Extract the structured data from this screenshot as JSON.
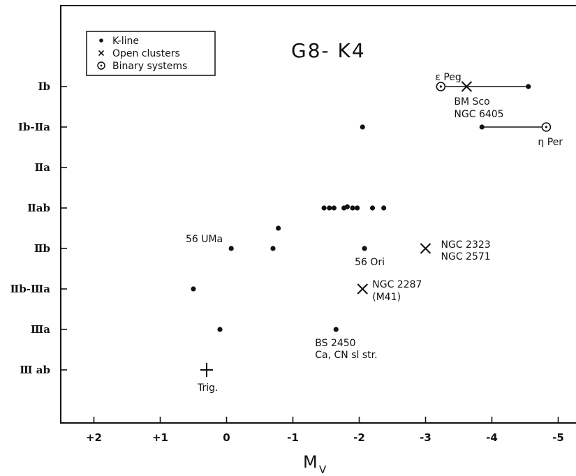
{
  "chart_data": {
    "type": "scatter",
    "title": "G8- K4",
    "xlabel": "M",
    "xlabel_sub": "V",
    "ylabel": "",
    "xlim": [
      2.5,
      -5.5
    ],
    "x_reversed": true,
    "x_ticks": [
      2,
      1,
      0,
      -1,
      -2,
      -3,
      -4,
      -5
    ],
    "x_tick_labels": [
      "+2",
      "+1",
      "0",
      "-1",
      "-2",
      "-3",
      "-4",
      "-5"
    ],
    "y_categories": [
      "Ib",
      "Ib-IIa",
      "IIa",
      "IIab",
      "IIb",
      "IIb-IIIa",
      "IIIa",
      "IIIab"
    ],
    "y_category_labels": [
      "Ib",
      "Ib-Ⅱa",
      "Ⅱa",
      "Ⅱab",
      "Ⅱb",
      "Ⅱb-Ⅲa",
      "Ⅲa",
      "Ⅲ ab"
    ],
    "grid": false,
    "legend": {
      "position": "top-left",
      "entries": [
        {
          "marker": "dot",
          "label": "K-line"
        },
        {
          "marker": "cross",
          "label": "Open clusters"
        },
        {
          "marker": "circle-dot",
          "label": "Binary systems"
        }
      ]
    },
    "series": [
      {
        "name": "K-line",
        "marker": "dot",
        "points": [
          {
            "x": -2.05,
            "y": 1
          },
          {
            "x": -4.55,
            "y": 0
          },
          {
            "x": -3.85,
            "y": 1
          },
          {
            "x": -1.47,
            "y": 3
          },
          {
            "x": -1.55,
            "y": 3
          },
          {
            "x": -1.62,
            "y": 3
          },
          {
            "x": -1.77,
            "y": 3
          },
          {
            "x": -1.82,
            "y": 2.97
          },
          {
            "x": -1.9,
            "y": 3
          },
          {
            "x": -1.97,
            "y": 3
          },
          {
            "x": -2.2,
            "y": 3
          },
          {
            "x": -2.37,
            "y": 3
          },
          {
            "x": -0.78,
            "y": 3.5
          },
          {
            "x": -0.07,
            "y": 4
          },
          {
            "x": -0.7,
            "y": 4
          },
          {
            "x": -2.08,
            "y": 4
          },
          {
            "x": 0.5,
            "y": 5
          },
          {
            "x": 0.1,
            "y": 6
          },
          {
            "x": -1.65,
            "y": 6
          }
        ]
      },
      {
        "name": "Open clusters",
        "marker": "cross",
        "points": [
          {
            "x": -3.62,
            "y": 0
          },
          {
            "x": -3.0,
            "y": 4
          },
          {
            "x": -2.05,
            "y": 5
          }
        ]
      },
      {
        "name": "Binary systems",
        "marker": "circle-dot",
        "points": [
          {
            "x": -3.23,
            "y": 0
          },
          {
            "x": -4.82,
            "y": 1
          }
        ]
      },
      {
        "name": "Trig.",
        "marker": "plus",
        "points": [
          {
            "x": 0.3,
            "y": 7
          }
        ]
      }
    ],
    "segments": [
      {
        "x1": -3.23,
        "x2": -4.55,
        "y": 0
      },
      {
        "x1": -3.85,
        "x2": -4.82,
        "y": 1
      }
    ],
    "annotations": [
      {
        "id": "eps-peg",
        "text": "ε Peg",
        "x": -3.23,
        "y": 0
      },
      {
        "id": "bm-sco-1",
        "text": "BM Sco",
        "x": -3.62,
        "y": 0
      },
      {
        "id": "bm-sco-2",
        "text": "NGC 6405",
        "x": -3.62,
        "y": 0
      },
      {
        "id": "eta-per",
        "text": "η Per",
        "x": -4.82,
        "y": 1
      },
      {
        "id": "56-uma",
        "text": "56 UMa",
        "x": -0.07,
        "y": 4
      },
      {
        "id": "56-ori",
        "text": "56 Ori",
        "x": -2.08,
        "y": 4
      },
      {
        "id": "ngc2323-1",
        "text": "NGC 2323",
        "x": -3.0,
        "y": 4
      },
      {
        "id": "ngc2323-2",
        "text": "NGC 2571",
        "x": -3.0,
        "y": 4
      },
      {
        "id": "ngc2287-1",
        "text": "NGC 2287",
        "x": -2.05,
        "y": 5
      },
      {
        "id": "ngc2287-2",
        "text": "(M41)",
        "x": -2.05,
        "y": 5
      },
      {
        "id": "bs2450-1",
        "text": "BS 2450",
        "x": -1.65,
        "y": 6
      },
      {
        "id": "bs2450-2",
        "text": "Ca, CN sl str.",
        "x": -1.65,
        "y": 6
      },
      {
        "id": "trig",
        "text": "Trig.",
        "x": 0.3,
        "y": 7
      }
    ]
  }
}
